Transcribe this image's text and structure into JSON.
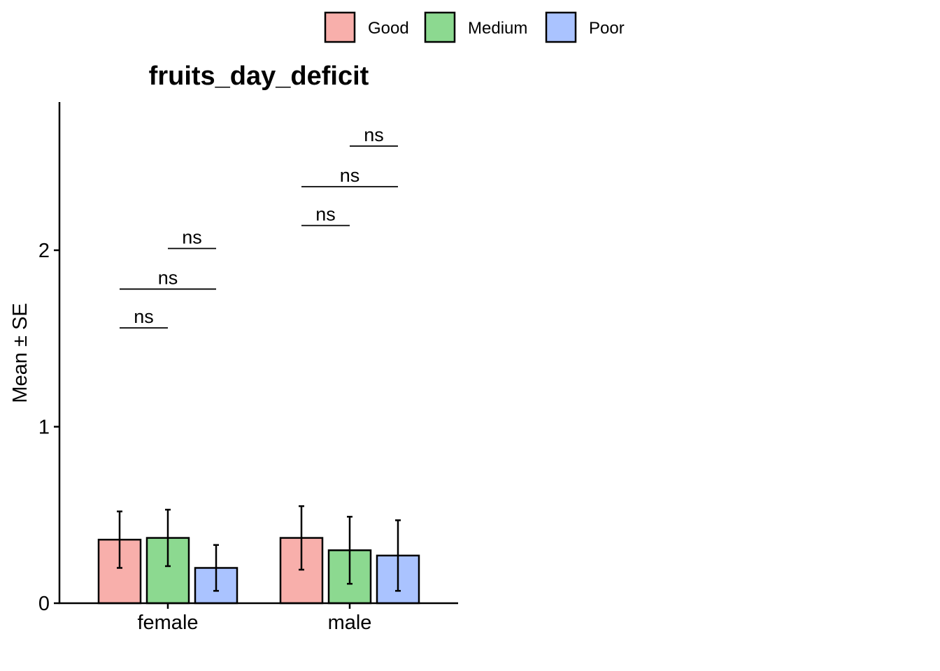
{
  "chart_data": {
    "type": "bar",
    "title": "fruits_day_deficit",
    "xlabel": "",
    "ylabel": "Mean ± SE",
    "ylim": [
      0,
      2.8
    ],
    "yticks": [
      0,
      1,
      2
    ],
    "categories": [
      "female",
      "male"
    ],
    "legend_position": "top",
    "grid": false,
    "series": [
      {
        "name": "Good",
        "color": "#F8AFAB",
        "values": [
          0.36,
          0.37
        ],
        "se": [
          0.16,
          0.18
        ]
      },
      {
        "name": "Medium",
        "color": "#8CD990",
        "values": [
          0.37,
          0.3
        ],
        "se": [
          0.16,
          0.19
        ]
      },
      {
        "name": "Poor",
        "color": "#AAC3FF",
        "values": [
          0.2,
          0.27
        ],
        "se": [
          0.13,
          0.2
        ]
      }
    ],
    "significance": [
      {
        "category": "female",
        "from": "Good",
        "to": "Medium",
        "y": 1.56,
        "label": "ns"
      },
      {
        "category": "female",
        "from": "Good",
        "to": "Poor",
        "y": 1.78,
        "label": "ns"
      },
      {
        "category": "female",
        "from": "Medium",
        "to": "Poor",
        "y": 2.01,
        "label": "ns"
      },
      {
        "category": "male",
        "from": "Good",
        "to": "Medium",
        "y": 2.14,
        "label": "ns"
      },
      {
        "category": "male",
        "from": "Good",
        "to": "Poor",
        "y": 2.36,
        "label": "ns"
      },
      {
        "category": "male",
        "from": "Medium",
        "to": "Poor",
        "y": 2.59,
        "label": "ns"
      }
    ]
  }
}
